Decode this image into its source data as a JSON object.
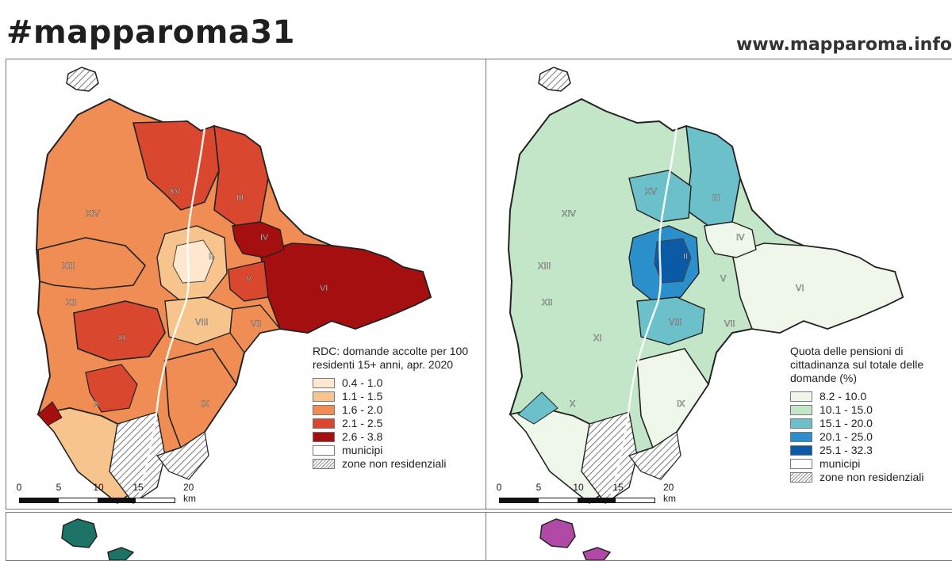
{
  "header": {
    "hashtag": "#mapparoma31",
    "website": "www.mapparoma.info"
  },
  "maps": [
    {
      "title": "RDC: domande accolte per 100 residenti 15+ anni, apr. 2020",
      "legend": [
        {
          "label": "0.4 - 1.0",
          "color": "#fde7cf"
        },
        {
          "label": "1.1 - 1.5",
          "color": "#f8c48d"
        },
        {
          "label": "1.6 - 2.0",
          "color": "#ef8d55"
        },
        {
          "label": "2.1 - 2.5",
          "color": "#d9472f"
        },
        {
          "label": "2.6 - 3.8",
          "color": "#a50f0f"
        }
      ],
      "outline_labels": [
        "municipi",
        "zone non residenziali"
      ],
      "municipi": [
        "XV",
        "III",
        "XIV",
        "IV",
        "XIII",
        "II",
        "V",
        "VI",
        "XII",
        "VIII",
        "VII",
        "XI",
        "X",
        "IX"
      ],
      "scale": [
        "0",
        "5",
        "10",
        "15",
        "20 km"
      ]
    },
    {
      "title": "Quota delle pensioni di cittadinanza sul totale delle domande (%)",
      "legend": [
        {
          "label": "8.2 - 10.0",
          "color": "#eef7ea"
        },
        {
          "label": "10.1 - 15.0",
          "color": "#c4e6c8"
        },
        {
          "label": "15.1 - 20.0",
          "color": "#6bc0c9"
        },
        {
          "label": "20.1 - 25.0",
          "color": "#2b8fcb"
        },
        {
          "label": "25.1 - 32.3",
          "color": "#0b5aa6"
        }
      ],
      "outline_labels": [
        "municipi",
        "zone non residenziali"
      ],
      "municipi": [
        "XV",
        "III",
        "XIV",
        "IV",
        "XIII",
        "II",
        "V",
        "VI",
        "XII",
        "VIII",
        "VII",
        "XI",
        "X",
        "IX"
      ],
      "scale": [
        "0",
        "5",
        "10",
        "15",
        "20 km"
      ]
    }
  ],
  "lower_panels": [
    {
      "color": "#1d7366"
    },
    {
      "color": "#b04aa6"
    }
  ]
}
